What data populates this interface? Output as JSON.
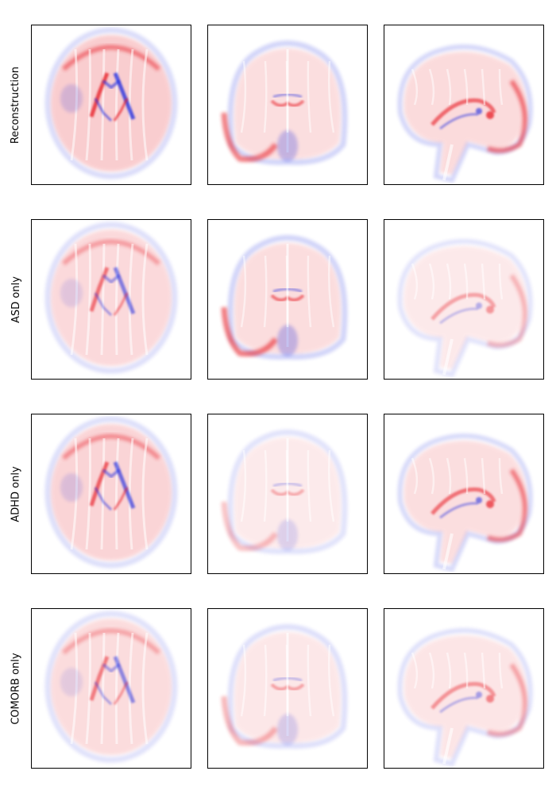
{
  "figure": {
    "rows": [
      {
        "label": "Reconstruction",
        "panels": [
          {
            "view": "axial",
            "intensity": 1.0
          },
          {
            "view": "coronal",
            "intensity": 0.85
          },
          {
            "view": "sagittal",
            "intensity": 0.95
          }
        ]
      },
      {
        "label": "ASD only",
        "panels": [
          {
            "view": "axial",
            "intensity": 0.55
          },
          {
            "view": "coronal",
            "intensity": 0.9
          },
          {
            "view": "sagittal",
            "intensity": 0.35
          }
        ]
      },
      {
        "label": "ADHD only",
        "panels": [
          {
            "view": "axial",
            "intensity": 0.75
          },
          {
            "view": "coronal",
            "intensity": 0.3
          },
          {
            "view": "sagittal",
            "intensity": 0.85
          }
        ]
      },
      {
        "label": "COMORB only",
        "panels": [
          {
            "view": "axial",
            "intensity": 0.45
          },
          {
            "view": "coronal",
            "intensity": 0.4
          },
          {
            "view": "sagittal",
            "intensity": 0.5
          }
        ]
      }
    ],
    "colormap": {
      "positive": "#e8202a",
      "negative": "#2630e0",
      "neutral": "#ffffff"
    }
  }
}
